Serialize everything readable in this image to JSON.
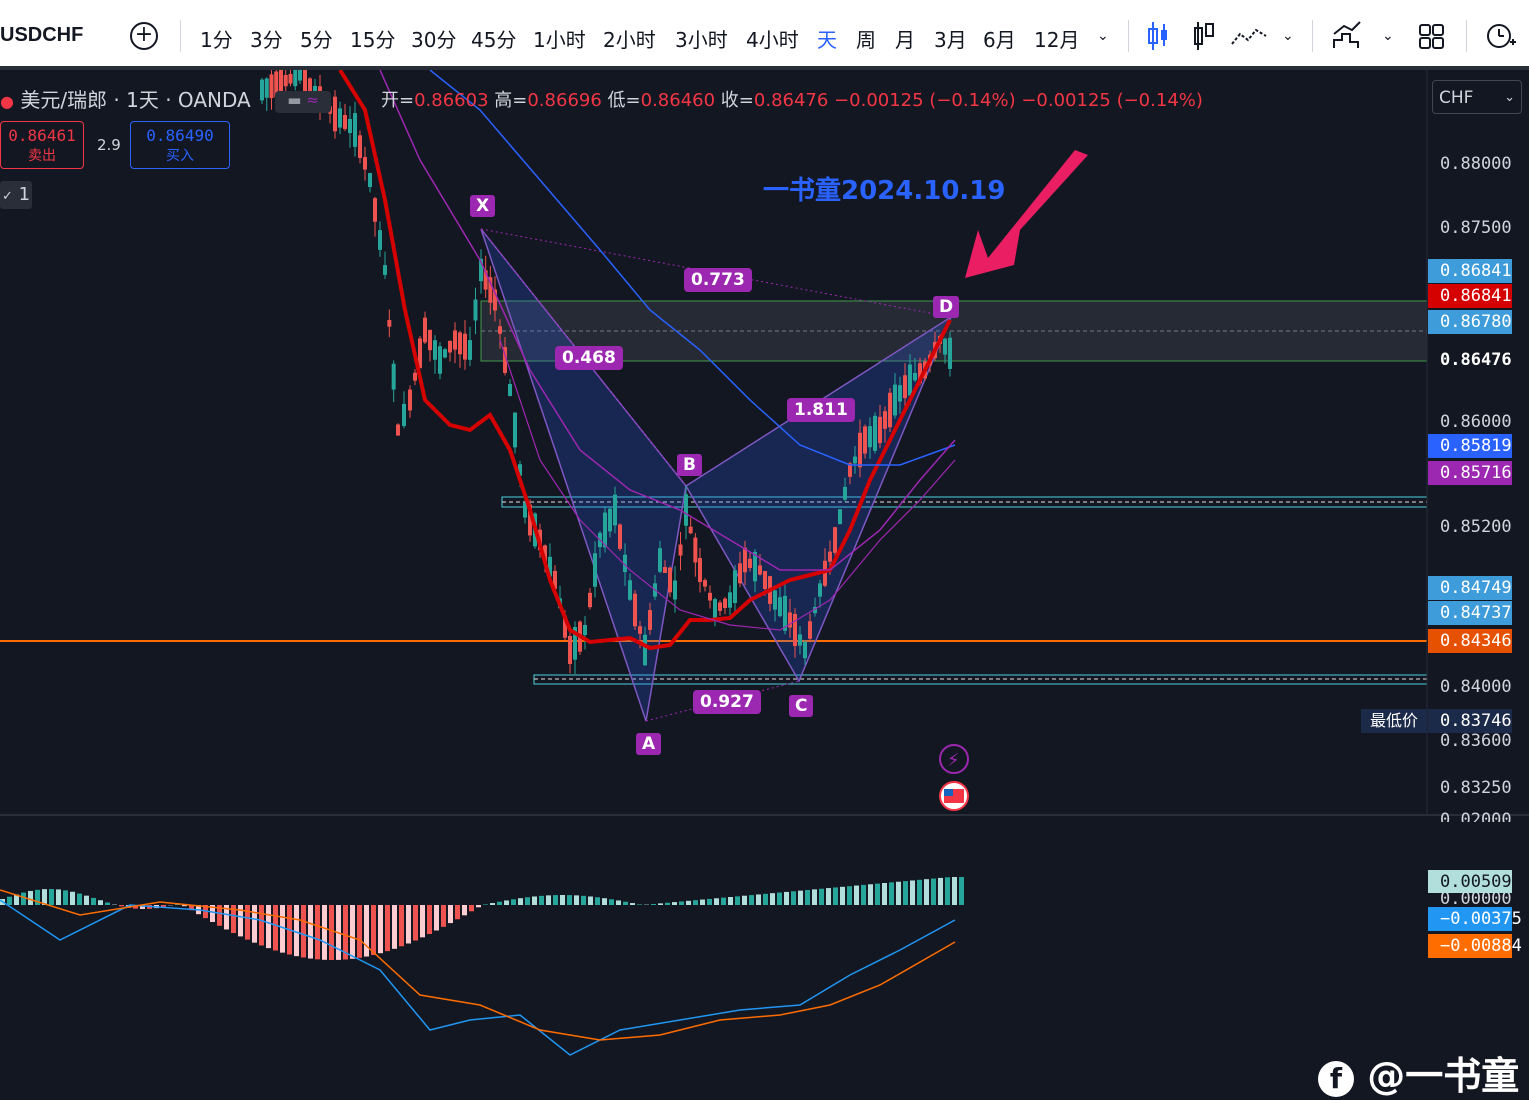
{
  "toolbar": {
    "symbol": "USDCHF",
    "intervals": [
      "1分",
      "3分",
      "5分",
      "15分",
      "30分",
      "45分",
      "1小时",
      "2小时",
      "3小时",
      "4小时",
      "天",
      "周",
      "月",
      "3月",
      "6月",
      "12月"
    ],
    "active_interval": "天"
  },
  "legend": {
    "title": "美元/瑞郎 · 1天 · OANDA",
    "open_label": "开=",
    "open": "0.86603",
    "high_label": "高=",
    "high": "0.86696",
    "low_label": "低=",
    "low": "0.86460",
    "close_label": "收=",
    "close": "0.86476",
    "change": "−0.00125 (−0.14%)",
    "change2": "−0.00125 (−0.14%)",
    "indicator_count": "1"
  },
  "trade": {
    "sell_price": "0.86461",
    "sell_label": "卖出",
    "spread": "2.9",
    "buy_price": "0.86490",
    "buy_label": "买入"
  },
  "currency": "CHF",
  "author_note": "一书童2024.10.19",
  "watermark": "@一书童",
  "pattern": {
    "points": {
      "X": "X",
      "A": "A",
      "B": "B",
      "C": "C",
      "D": "D"
    },
    "ratios": {
      "xb": "0.773",
      "xa_ab": "0.468",
      "bc_cd": "1.811",
      "ac": "0.927"
    }
  },
  "price_axis": {
    "ticks": [
      "0.88000",
      "0.87500",
      "0.86000",
      "0.85200",
      "0.84000",
      "0.83600",
      "0.83250",
      "0.02000"
    ]
  },
  "price_tags": [
    {
      "value": "0.86841",
      "color": "#3d9cd9"
    },
    {
      "value": "0.86841",
      "color": "#d50000"
    },
    {
      "value": "0.86780",
      "color": "#3d9cd9"
    },
    {
      "value": "0.86476",
      "color": "#131722"
    },
    {
      "value": "0.85819",
      "color": "#2962ff"
    },
    {
      "value": "0.85716",
      "color": "#9c27b0"
    },
    {
      "value": "0.84749",
      "color": "#3d9cd9"
    },
    {
      "value": "0.84737",
      "color": "#3d9cd9"
    },
    {
      "value": "0.84346",
      "color": "#e65100"
    },
    {
      "value": "0.83746",
      "color": "#1c2a4a"
    }
  ],
  "lowest_label": "最低价",
  "macd_tags": [
    {
      "value": "0.00509",
      "color": "#b2dfdb",
      "text": "#131722"
    },
    {
      "value": "0.00000",
      "color": "#131722",
      "text": "#d1d4dc"
    },
    {
      "value": "−0.00375",
      "color": "#2196f3",
      "text": "#fff"
    },
    {
      "value": "−0.00884",
      "color": "#ff6d00",
      "text": "#fff"
    }
  ]
}
